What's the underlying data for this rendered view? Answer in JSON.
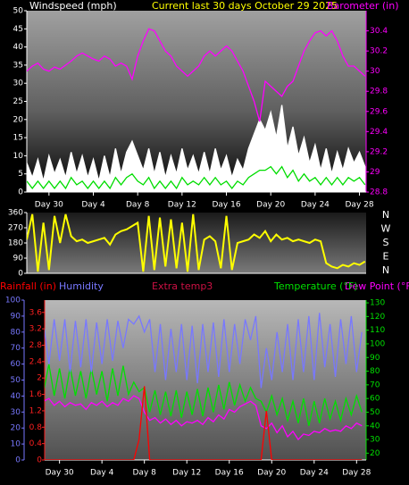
{
  "chart_data": [
    {
      "type": "line",
      "title": "Current last 30 days October 29 2025",
      "y_label": "Windspeed (mph)",
      "y2_label": "Barometer (in)",
      "x": [
        -2,
        -1.5,
        -1,
        -0.5,
        0,
        0.5,
        1,
        1.5,
        2,
        2.5,
        3,
        3.5,
        4,
        4.5,
        5,
        5.5,
        6,
        6.5,
        7,
        7.5,
        8,
        8.5,
        9,
        9.5,
        10,
        10.5,
        11,
        11.5,
        12,
        12.5,
        13,
        13.5,
        14,
        14.5,
        15,
        15.5,
        16,
        16.5,
        17,
        17.5,
        18,
        18.5,
        19,
        19.5,
        20,
        20.5,
        21,
        21.5,
        22,
        22.5,
        23,
        23.5,
        24,
        24.5,
        25,
        25.5,
        26,
        26.5,
        27,
        27.5,
        28,
        28.5
      ],
      "xlim": [
        -2,
        28.6
      ],
      "xticks": [
        {
          "value": 0,
          "label": "Day 30"
        },
        {
          "value": 4,
          "label": "Day 4"
        },
        {
          "value": 8,
          "label": "Day 8"
        },
        {
          "value": 12,
          "label": "Day 12"
        },
        {
          "value": 16,
          "label": "Day 16"
        },
        {
          "value": 20,
          "label": "Day 20"
        },
        {
          "value": 24,
          "label": "Day 24"
        },
        {
          "value": 28,
          "label": "Day 28"
        }
      ],
      "ylim": [
        0,
        50
      ],
      "yticks": [
        0,
        5,
        10,
        15,
        20,
        25,
        30,
        35,
        40,
        45,
        50
      ],
      "y2lim": [
        28.8,
        30.6
      ],
      "y2ticks": [
        28.8,
        29,
        29.2,
        29.4,
        29.6,
        29.8,
        30,
        30.2,
        30.4
      ],
      "series": [
        {
          "color": "#ffffff",
          "style": "area",
          "values": [
            8,
            4,
            9,
            3,
            10,
            5,
            9,
            4,
            11,
            5,
            10,
            4,
            9,
            3,
            10,
            4,
            12,
            5,
            11,
            14,
            10,
            6,
            12,
            5,
            11,
            4,
            10,
            5,
            12,
            6,
            10,
            5,
            11,
            5,
            12,
            6,
            10,
            4,
            9,
            6,
            12,
            16,
            20,
            17,
            22,
            15,
            24,
            12,
            18,
            10,
            15,
            8,
            13,
            6,
            12,
            5,
            11,
            6,
            12,
            8,
            11,
            7
          ]
        },
        {
          "color": "#00dd00",
          "values": [
            3,
            1,
            3,
            1,
            3,
            1,
            3,
            1,
            4,
            2,
            3,
            1,
            3,
            1,
            3,
            1,
            4,
            2,
            4,
            5,
            3,
            2,
            4,
            1,
            3,
            1,
            3,
            1,
            4,
            2,
            3,
            2,
            4,
            2,
            4,
            2,
            3,
            1,
            3,
            2,
            4,
            5,
            6,
            6,
            7,
            5,
            7,
            4,
            6,
            3,
            5,
            3,
            4,
            2,
            4,
            2,
            4,
            2,
            4,
            3,
            4,
            2
          ]
        },
        {
          "color": "#ff00ff",
          "axis": "y2",
          "values": [
            30.0,
            30.05,
            30.08,
            30.02,
            30.0,
            30.04,
            30.02,
            30.06,
            30.1,
            30.15,
            30.18,
            30.15,
            30.12,
            30.1,
            30.15,
            30.12,
            30.05,
            30.08,
            30.05,
            29.92,
            30.15,
            30.3,
            30.42,
            30.4,
            30.3,
            30.2,
            30.15,
            30.05,
            30.0,
            29.95,
            30.0,
            30.05,
            30.15,
            30.2,
            30.15,
            30.2,
            30.25,
            30.2,
            30.1,
            30.0,
            29.85,
            29.7,
            29.5,
            29.9,
            29.85,
            29.8,
            29.75,
            29.85,
            29.9,
            30.05,
            30.2,
            30.3,
            30.38,
            30.4,
            30.35,
            30.4,
            30.3,
            30.15,
            30.05,
            30.05,
            30.0,
            29.95
          ]
        }
      ]
    },
    {
      "type": "line",
      "x": [
        -2,
        -1.5,
        -1,
        -0.5,
        0,
        0.5,
        1,
        1.5,
        2,
        2.5,
        3,
        3.5,
        4,
        4.5,
        5,
        5.5,
        6,
        6.5,
        7,
        7.5,
        8,
        8.5,
        9,
        9.5,
        10,
        10.5,
        11,
        11.5,
        12,
        12.5,
        13,
        13.5,
        14,
        14.5,
        15,
        15.5,
        16,
        16.5,
        17,
        17.5,
        18,
        18.5,
        19,
        19.5,
        20,
        20.5,
        21,
        21.5,
        22,
        22.5,
        23,
        23.5,
        24,
        24.5,
        25,
        25.5,
        26,
        26.5,
        27,
        27.5,
        28,
        28.5
      ],
      "xlim": [
        -2,
        28.6
      ],
      "ylim": [
        0,
        360
      ],
      "yticks": [
        0,
        90,
        180,
        270,
        360
      ],
      "compass": [
        "N",
        "W",
        "S",
        "E",
        "N"
      ],
      "series": [
        {
          "color": "#ffff00",
          "values": [
            200,
            350,
            10,
            300,
            20,
            340,
            180,
            350,
            220,
            190,
            200,
            180,
            190,
            200,
            210,
            170,
            230,
            250,
            260,
            280,
            300,
            10,
            340,
            20,
            330,
            40,
            320,
            30,
            300,
            10,
            350,
            20,
            200,
            220,
            190,
            30,
            340,
            20,
            180,
            190,
            200,
            230,
            210,
            250,
            190,
            230,
            200,
            210,
            190,
            200,
            190,
            180,
            200,
            190,
            60,
            40,
            30,
            50,
            40,
            60,
            50,
            70
          ]
        }
      ]
    },
    {
      "type": "line",
      "x": [
        -2,
        -1.5,
        -1,
        -0.5,
        0,
        0.5,
        1,
        1.5,
        2,
        2.5,
        3,
        3.5,
        4,
        4.5,
        5,
        5.5,
        6,
        6.5,
        7,
        7.5,
        8,
        8.5,
        9,
        9.5,
        10,
        10.5,
        11,
        11.5,
        12,
        12.5,
        13,
        13.5,
        14,
        14.5,
        15,
        15.5,
        16,
        16.5,
        17,
        17.5,
        18,
        18.5,
        19,
        19.5,
        20,
        20.5,
        21,
        21.5,
        22,
        22.5,
        23,
        23.5,
        24,
        24.5,
        25,
        25.5,
        26,
        26.5,
        27,
        27.5,
        28,
        28.5
      ],
      "xlim": [
        -1.4,
        28.9
      ],
      "xticks": [
        {
          "value": 0,
          "label": "Day 30"
        },
        {
          "value": 4,
          "label": "Day 4"
        },
        {
          "value": 8,
          "label": "Day 8"
        },
        {
          "value": 12,
          "label": "Day 12"
        },
        {
          "value": 16,
          "label": "Day 16"
        },
        {
          "value": 20,
          "label": "Day 20"
        },
        {
          "value": 24,
          "label": "Day 24"
        },
        {
          "value": 28,
          "label": "Day 28"
        }
      ],
      "ylim": [
        0,
        100
      ],
      "yticks": [
        0,
        10,
        20,
        30,
        40,
        50,
        60,
        70,
        80,
        90,
        100
      ],
      "y2lim": [
        15,
        132
      ],
      "y2ticks": [
        20,
        30,
        40,
        50,
        60,
        70,
        80,
        90,
        100,
        110,
        120,
        130
      ],
      "y3lim": [
        0,
        3.9
      ],
      "y3ticks": [
        0,
        0.4,
        0.8,
        1.2,
        1.6,
        2,
        2.4,
        2.8,
        3.2,
        3.6
      ],
      "series": [
        {
          "name": "Rainfall (in)",
          "color": "#ff0000",
          "axis": "y3",
          "values": [
            0,
            0,
            0,
            0,
            0,
            0,
            0,
            0,
            0,
            0,
            0,
            0,
            0,
            0,
            0,
            0,
            0,
            0,
            0,
            0.5,
            1.8,
            0,
            0,
            0,
            0,
            0,
            0,
            0,
            0,
            0,
            0,
            0,
            0,
            0,
            0,
            0,
            0,
            0,
            0,
            0,
            0,
            0,
            0,
            1.2,
            0,
            0,
            0,
            0,
            0,
            0,
            0,
            0,
            0,
            0,
            0,
            0,
            0,
            0,
            0,
            0,
            0,
            0
          ]
        },
        {
          "name": "Humidity",
          "color": "#7878ff",
          "values": [
            70,
            85,
            60,
            88,
            62,
            88,
            55,
            87,
            58,
            88,
            55,
            86,
            60,
            88,
            62,
            87,
            70,
            88,
            85,
            90,
            80,
            88,
            55,
            85,
            50,
            82,
            55,
            85,
            50,
            84,
            48,
            85,
            55,
            86,
            52,
            88,
            55,
            85,
            60,
            88,
            75,
            90,
            45,
            70,
            50,
            80,
            55,
            85,
            50,
            88,
            55,
            90,
            50,
            92,
            58,
            85,
            52,
            88,
            60,
            90,
            55,
            80
          ]
        },
        {
          "name": "Extra temp3",
          "color": "#cc1144",
          "axis": "y2",
          "values": [
            null,
            null,
            null,
            null,
            null,
            null,
            null,
            null,
            null,
            null,
            null,
            null,
            null,
            null,
            null,
            null,
            null,
            null,
            null,
            null,
            null,
            null,
            null,
            null,
            null,
            null,
            null,
            null,
            null,
            null,
            null,
            null,
            null,
            null,
            null,
            null,
            null,
            null,
            null,
            null,
            null,
            null,
            null,
            null,
            null,
            null,
            null,
            null,
            null,
            null,
            null,
            null,
            null,
            null,
            null,
            null,
            null,
            null,
            null,
            null,
            null,
            null
          ]
        },
        {
          "name": "Temperature (°F)",
          "color": "#00e000",
          "axis": "y2",
          "values": [
            80,
            65,
            85,
            62,
            82,
            60,
            83,
            62,
            80,
            60,
            82,
            63,
            80,
            58,
            82,
            62,
            84,
            63,
            72,
            65,
            68,
            50,
            66,
            48,
            65,
            47,
            66,
            46,
            65,
            48,
            67,
            47,
            68,
            50,
            70,
            52,
            72,
            55,
            70,
            58,
            68,
            60,
            58,
            50,
            62,
            48,
            60,
            44,
            58,
            42,
            60,
            40,
            58,
            42,
            60,
            45,
            58,
            44,
            60,
            48,
            62,
            50
          ]
        },
        {
          "name": "Dew Point (°F)",
          "color": "#ff00ff",
          "axis": "y2",
          "values": [
            62,
            58,
            60,
            55,
            58,
            54,
            57,
            55,
            56,
            52,
            57,
            55,
            58,
            54,
            57,
            55,
            60,
            58,
            62,
            60,
            50,
            44,
            46,
            42,
            45,
            41,
            44,
            40,
            43,
            42,
            44,
            41,
            46,
            43,
            48,
            45,
            52,
            50,
            54,
            56,
            58,
            55,
            40,
            38,
            42,
            35,
            40,
            32,
            36,
            30,
            34,
            33,
            36,
            35,
            38,
            36,
            37,
            36,
            40,
            38,
            42,
            40
          ]
        }
      ]
    }
  ]
}
